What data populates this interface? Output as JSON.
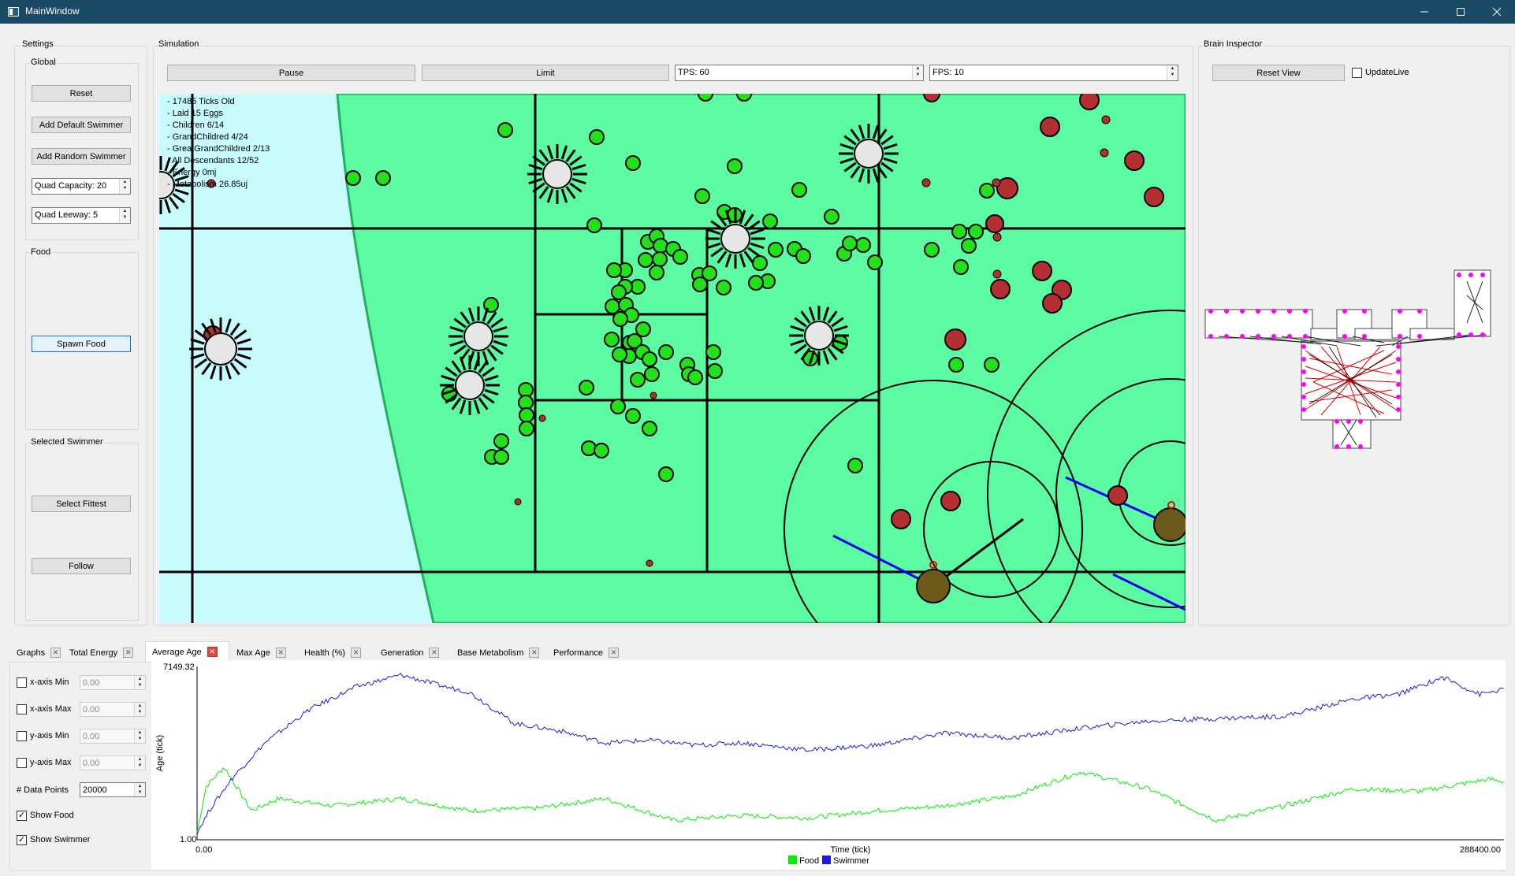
{
  "window": {
    "title": "MainWindow"
  },
  "settings": {
    "group_label": "Settings",
    "global_label": "Global",
    "reset_label": "Reset",
    "add_default_label": "Add Default Swimmer",
    "add_random_label": "Add Random Swimmer",
    "quad_capacity": "Quad Capacity: 20",
    "quad_leeway": "Quad Leeway: 5",
    "food_label": "Food",
    "spawn_food_label": "Spawn Food",
    "selected_label": "Selected Swimmer",
    "select_fittest_label": "Select Fittest",
    "follow_label": "Follow"
  },
  "simulation": {
    "group_label": "Simulation",
    "pause_label": "Pause",
    "limit_label": "Limit",
    "tps": "TPS: 60",
    "fps": "FPS: 10",
    "stats": [
      "- 17485 Ticks Old",
      "- Laid 15 Eggs",
      "- Children 6/14",
      "- GrandChildred 4/24",
      "- GreatGrandChildred 2/13",
      "- All Descendants 12/52",
      "- Energy 0mj",
      "- Metabolism 26.85uj"
    ]
  },
  "brain": {
    "group_label": "Brain Inspector",
    "reset_view_label": "Reset View",
    "update_live_label": "UpdateLive",
    "update_live_checked": false
  },
  "tabs": [
    {
      "label": "Graphs",
      "active": false
    },
    {
      "label": "Total Energy",
      "active": false
    },
    {
      "label": "Average Age",
      "active": true
    },
    {
      "label": "Max Age",
      "active": false
    },
    {
      "label": "Health (%)",
      "active": false
    },
    {
      "label": "Generation",
      "active": false
    },
    {
      "label": "Base Metabolism",
      "active": false
    },
    {
      "label": "Performance",
      "active": false
    }
  ],
  "graph_controls": {
    "x_min_label": "x-axis Min",
    "x_min_value": "0.00",
    "x_max_label": "x-axis Max",
    "x_max_value": "0.00",
    "y_min_label": "y-axis Min",
    "y_min_value": "0.00",
    "y_max_label": "y-axis Max",
    "y_max_value": "0.00",
    "data_points_label": "# Data Points",
    "data_points_value": "20000",
    "show_food_label": "Show Food",
    "show_food_checked": true,
    "show_swimmer_label": "Show Swimmer",
    "show_swimmer_checked": true
  },
  "chart_data": {
    "type": "line",
    "ylabel": "Age (tick)",
    "xlabel": "Time (tick)",
    "x_min_label": "0.00",
    "x_max_label": "288400.00",
    "y_min_label": "1.00",
    "y_max_label": "7149.32",
    "xlim": [
      0,
      288400
    ],
    "ylim": [
      1,
      7149.32
    ],
    "legend_position": "bottom-center",
    "series": [
      {
        "name": "Food",
        "color": "#00ee00",
        "x": [
          0,
          2000,
          6000,
          12000,
          18000,
          30000,
          45000,
          60000,
          75000,
          90000,
          105000,
          120000,
          135000,
          150000,
          165000,
          180000,
          195000,
          210000,
          225000,
          240000,
          255000,
          270000,
          285000,
          288400
        ],
        "values": [
          300,
          2200,
          3000,
          1200,
          1700,
          1400,
          1700,
          1200,
          1300,
          1700,
          800,
          1000,
          900,
          1200,
          1400,
          1800,
          2800,
          2100,
          800,
          1400,
          2100,
          2000,
          2500,
          2400
        ]
      },
      {
        "name": "Swimmer",
        "color": "#1a1ae6",
        "x": [
          0,
          3000,
          8000,
          15000,
          25000,
          35000,
          45000,
          55000,
          60000,
          70000,
          80000,
          90000,
          100000,
          110000,
          120000,
          135000,
          150000,
          165000,
          180000,
          195000,
          210000,
          225000,
          240000,
          255000,
          265000,
          275000,
          283000,
          288400
        ],
        "values": [
          300,
          1300,
          2600,
          4000,
          5400,
          6300,
          6800,
          6300,
          6100,
          4800,
          4500,
          4000,
          4100,
          3900,
          4000,
          3700,
          3900,
          4400,
          4200,
          4600,
          4900,
          5000,
          5100,
          5800,
          6000,
          6700,
          6000,
          6200
        ]
      }
    ]
  }
}
